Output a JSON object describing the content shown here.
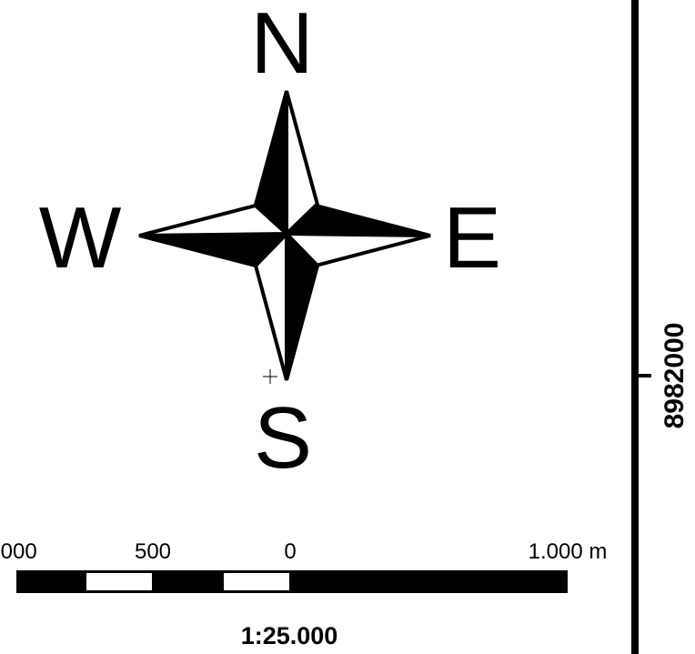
{
  "north_arrow": {
    "north": "N",
    "south": "S",
    "east": "E",
    "west": "W"
  },
  "scale_bar": {
    "labels": [
      ".000",
      "500",
      "0",
      "1.000 m"
    ],
    "ratio": "1:25.000"
  },
  "frame": {
    "coordinate_label": "8982000"
  },
  "colors": {
    "ink": "#000000",
    "paper": "#ffffff"
  }
}
